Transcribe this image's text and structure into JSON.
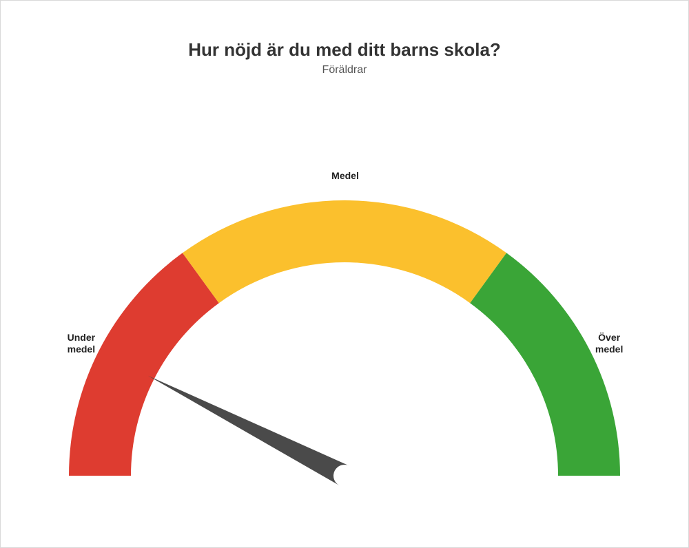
{
  "title": "Hur nöjd är du med ditt barns skola?",
  "subtitle": "Föräldrar",
  "gauge": {
    "type": "gauge",
    "min": 0,
    "max": 100,
    "value": 15,
    "outer_radius": 400,
    "inner_radius": 310,
    "needle_length": 320,
    "needle_base_halfwidth": 16,
    "needle_color": "#4a4a4a",
    "background_color": "#ffffff",
    "border_color": "#d9d9d9",
    "segments": [
      {
        "from": 0,
        "to": 30,
        "color": "#de3c30",
        "label": "Under\nmedel"
      },
      {
        "from": 30,
        "to": 70,
        "color": "#fbc02d",
        "label": "Medel"
      },
      {
        "from": 70,
        "to": 100,
        "color": "#3aa537",
        "label": "Över\nmedel"
      }
    ],
    "title_fontsize": 26,
    "subtitle_fontsize": 16,
    "label_fontsize": 14,
    "label_fontweight": "bold",
    "label_color": "#222222",
    "label_radius": 430
  }
}
